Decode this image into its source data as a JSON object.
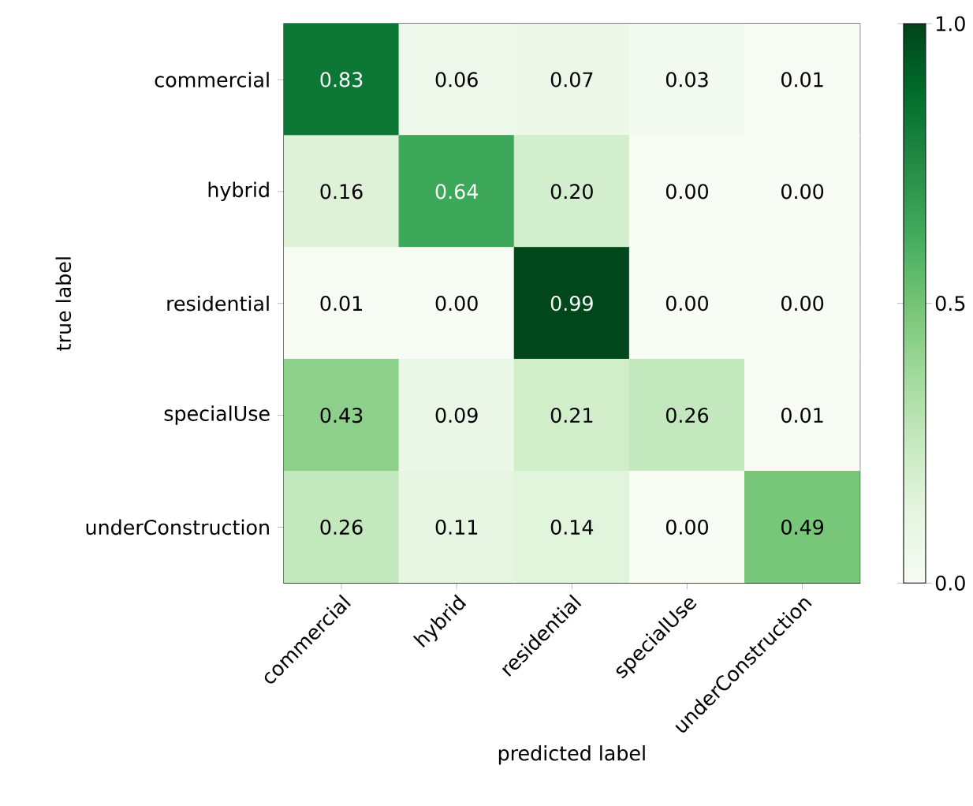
{
  "chart_data": {
    "type": "heatmap",
    "xlabel": "predicted label",
    "ylabel": "true label",
    "categories": [
      "commercial",
      "hybrid",
      "residential",
      "specialUse",
      "underConstruction"
    ],
    "y_categories": [
      "commercial",
      "hybrid",
      "residential",
      "specialUse",
      "underConstruction"
    ],
    "cells": [
      [
        0.83,
        0.06,
        0.07,
        0.03,
        0.01
      ],
      [
        0.16,
        0.64,
        0.2,
        0.0,
        0.0
      ],
      [
        0.01,
        0.0,
        0.99,
        0.0,
        0.0
      ],
      [
        0.43,
        0.09,
        0.21,
        0.26,
        0.01
      ],
      [
        0.26,
        0.11,
        0.14,
        0.0,
        0.49
      ]
    ],
    "cell_labels": [
      [
        "0.83",
        "0.06",
        "0.07",
        "0.03",
        "0.01"
      ],
      [
        "0.16",
        "0.64",
        "0.20",
        "0.00",
        "0.00"
      ],
      [
        "0.01",
        "0.00",
        "0.99",
        "0.00",
        "0.00"
      ],
      [
        "0.43",
        "0.09",
        "0.21",
        "0.26",
        "0.01"
      ],
      [
        "0.26",
        "0.11",
        "0.14",
        "0.00",
        "0.49"
      ]
    ],
    "clim": [
      0,
      1
    ],
    "cticks": [
      {
        "value": 0,
        "label": "0.0"
      },
      {
        "value": 0.5,
        "label": "0.5"
      },
      {
        "value": 1,
        "label": "1.0"
      }
    ]
  }
}
